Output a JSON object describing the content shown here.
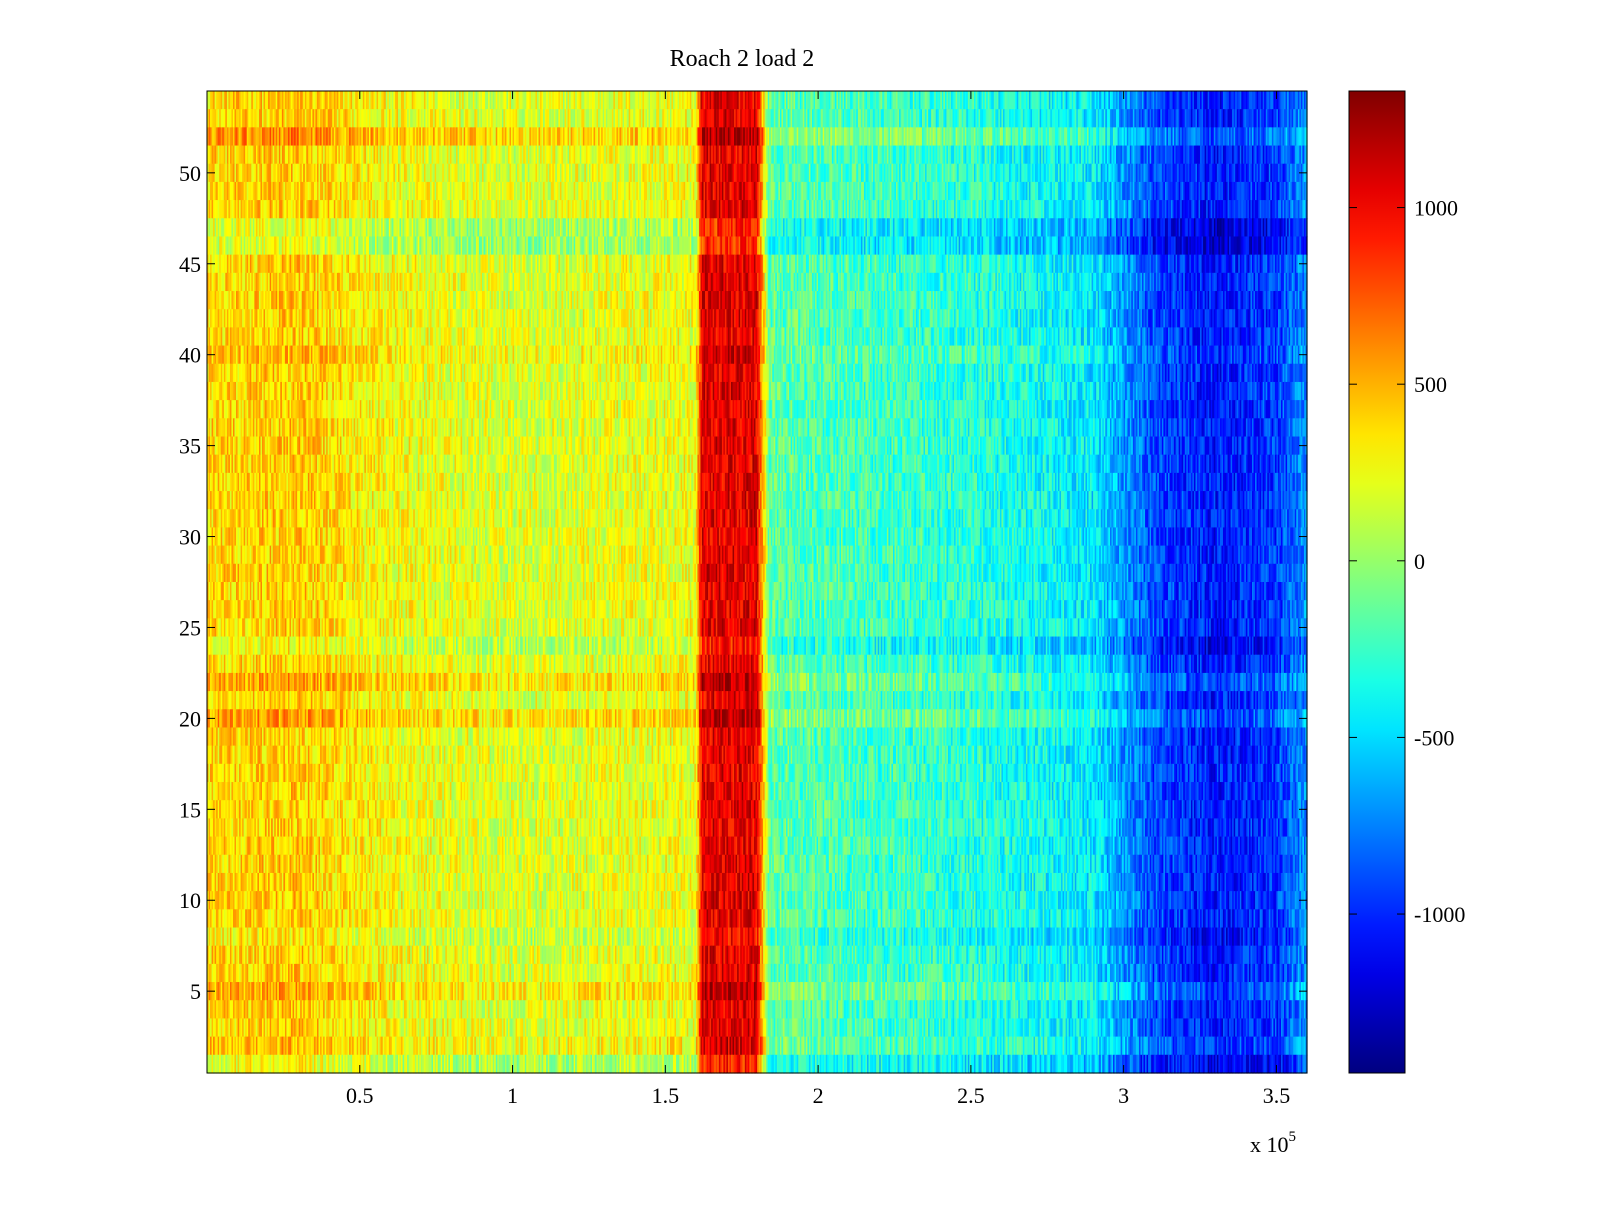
{
  "chart_data": {
    "type": "heatmap",
    "title": "Roach 2 load 2",
    "xlabel": "",
    "ylabel": "",
    "x_range": [
      0,
      3.6
    ],
    "x_ticks": [
      0.5,
      1,
      1.5,
      2,
      2.5,
      3,
      3.5
    ],
    "x_tick_labels": [
      "0.5",
      "1",
      "1.5",
      "2",
      "2.5",
      "3",
      "3.5"
    ],
    "x_multiplier_base": "x 10",
    "x_multiplier_exponent": "5",
    "y_range": [
      0.5,
      54.5
    ],
    "y_ticks": [
      5,
      10,
      15,
      20,
      25,
      30,
      35,
      40,
      45,
      50
    ],
    "y_tick_labels": [
      "5",
      "10",
      "15",
      "20",
      "25",
      "30",
      "35",
      "40",
      "45",
      "50"
    ],
    "rows": 54,
    "columns_sampled": 720,
    "colormap": "jet",
    "color_range": [
      -1450,
      1330
    ],
    "colorbar_ticks": [
      1000,
      500,
      0,
      -500,
      -1000
    ],
    "colorbar_tick_labels": [
      "1000",
      "500",
      "0",
      "-500",
      "-1000"
    ],
    "value_profile": {
      "description": "approximate mean value vs x (in units of 1e5), uniform across rows with per-cell noise",
      "x": [
        0,
        0.3,
        0.6,
        1.0,
        1.3,
        1.6,
        1.62,
        1.8,
        1.84,
        2.0,
        2.5,
        2.9,
        3.1,
        3.3,
        3.5,
        3.6
      ],
      "values": [
        380,
        430,
        270,
        180,
        220,
        250,
        1050,
        1050,
        -150,
        -200,
        -300,
        -450,
        -900,
        -1050,
        -950,
        -700
      ],
      "noise_amplitude": 220
    },
    "row_offsets": {
      "description": "approximate per-row deviation added to profile",
      "rows": [
        1,
        2,
        5,
        8,
        20,
        22,
        24,
        40,
        46,
        47,
        52
      ],
      "values": [
        -150,
        60,
        120,
        -80,
        150,
        130,
        -120,
        60,
        -200,
        -180,
        180
      ]
    }
  }
}
